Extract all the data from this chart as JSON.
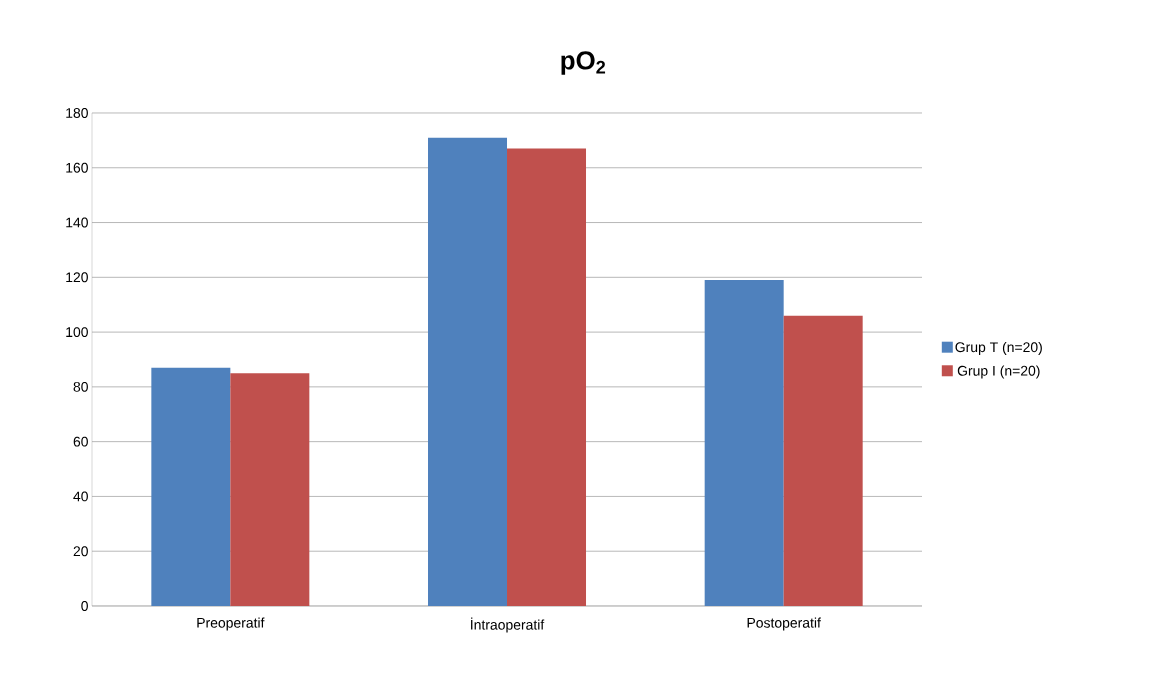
{
  "chart_data": {
    "type": "bar",
    "title": "pO$_{2}$",
    "categories": [
      "Preoperatif",
      "İntraoperatif",
      "Postoperatif"
    ],
    "series": [
      {
        "name": "Grup T (n=20)",
        "color": "#4f81bd",
        "values": [
          87,
          171,
          119
        ]
      },
      {
        "name": "Grup I (n=20)",
        "color": "#c0504d",
        "values": [
          85,
          167,
          106
        ]
      }
    ],
    "ylim": [
      0,
      180
    ],
    "yticks": [
      0,
      20,
      40,
      60,
      80,
      100,
      120,
      140,
      160,
      180
    ],
    "grid": "y",
    "legend": "right"
  }
}
